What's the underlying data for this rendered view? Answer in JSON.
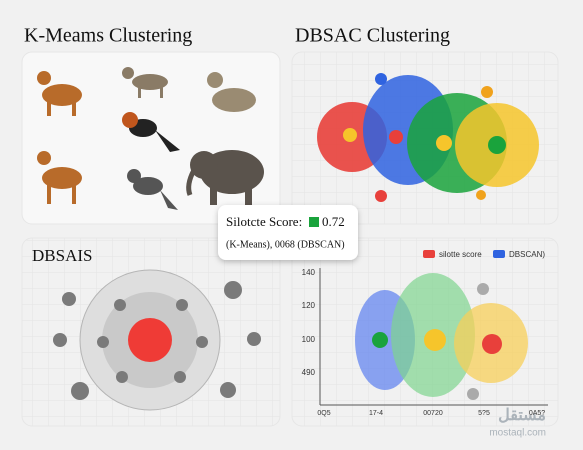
{
  "header": {
    "left_title": "K-Meams Clustering",
    "right_title": "DBSAC Clustering"
  },
  "panels": {
    "bottom_left_title": "DBSAIS"
  },
  "callout": {
    "label": "Silotcte Score:",
    "score": "0.72",
    "detail": "(K-Means), 0068 (DBSCAN)"
  },
  "plot": {
    "legend": [
      "silotte score",
      "DBSCAN)"
    ],
    "y_labels": [
      "140",
      "120",
      "100",
      "490"
    ],
    "x_labels": [
      "0Q5",
      "17-4",
      "00720",
      "5?5",
      "0A5?"
    ]
  },
  "watermark": {
    "arabic": "مستقل",
    "latin": "mostaql.com"
  }
}
